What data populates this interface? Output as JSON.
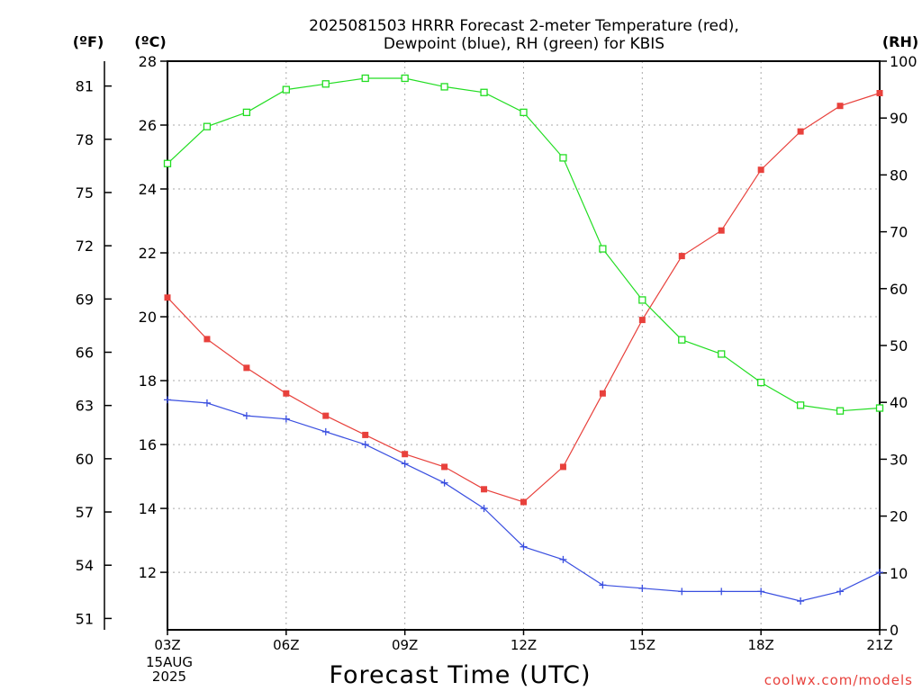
{
  "title_line1": "2025081503 HRRR Forecast 2-meter Temperature (red),",
  "title_line2": "Dewpoint (blue), RH (green) for KBIS",
  "unit_f": "(ºF)",
  "unit_c": "(ºC)",
  "unit_rh": "(RH)",
  "date_line1": "15AUG",
  "date_line2": "2025",
  "watermark": "coolwx.com/models",
  "colors": {
    "temperature": "#e8413c",
    "dewpoint": "#3a4fe0",
    "rh": "#22dd22",
    "grid": "#aaaaaa"
  },
  "chart_data": {
    "type": "line",
    "xlabel": "Forecast Time (UTC)",
    "x": [
      "03Z",
      "04Z",
      "05Z",
      "06Z",
      "07Z",
      "08Z",
      "09Z",
      "10Z",
      "11Z",
      "12Z",
      "13Z",
      "14Z",
      "15Z",
      "16Z",
      "17Z",
      "18Z",
      "19Z",
      "20Z",
      "21Z"
    ],
    "x_tick_labels": [
      "03Z",
      "06Z",
      "09Z",
      "12Z",
      "15Z",
      "18Z",
      "21Z"
    ],
    "y_celsius": {
      "lim": [
        10.2,
        28
      ],
      "ticks": [
        12,
        14,
        16,
        18,
        20,
        22,
        24,
        26,
        28
      ]
    },
    "y_fahrenheit": {
      "ticks": [
        51,
        54,
        57,
        60,
        63,
        66,
        69,
        72,
        75,
        78,
        81
      ]
    },
    "y_rh": {
      "lim": [
        0,
        100
      ],
      "ticks": [
        0,
        10,
        20,
        30,
        40,
        50,
        60,
        70,
        80,
        90,
        100
      ]
    },
    "grid": true,
    "series": [
      {
        "name": "Temperature",
        "axis": "celsius",
        "color": "#e8413c",
        "marker": "filled-square",
        "values": [
          20.6,
          19.3,
          18.4,
          17.6,
          16.9,
          16.3,
          15.7,
          15.3,
          14.6,
          14.2,
          15.3,
          17.6,
          19.9,
          21.9,
          22.7,
          24.6,
          25.8,
          26.6,
          27.0
        ]
      },
      {
        "name": "Dewpoint",
        "axis": "celsius",
        "color": "#3a4fe0",
        "marker": "plus",
        "values": [
          17.4,
          17.3,
          16.9,
          16.8,
          16.4,
          16.0,
          15.4,
          14.8,
          14.0,
          12.8,
          12.4,
          11.6,
          11.5,
          11.4,
          11.4,
          11.4,
          11.1,
          11.4,
          12.0
        ]
      },
      {
        "name": "RH",
        "axis": "rh",
        "color": "#22dd22",
        "marker": "open-square",
        "values": [
          82,
          88.5,
          91,
          95,
          96,
          97,
          97,
          95.5,
          94.5,
          91,
          83,
          67,
          58,
          51,
          48.5,
          43.5,
          39.5,
          38.5,
          39
        ]
      }
    ]
  }
}
